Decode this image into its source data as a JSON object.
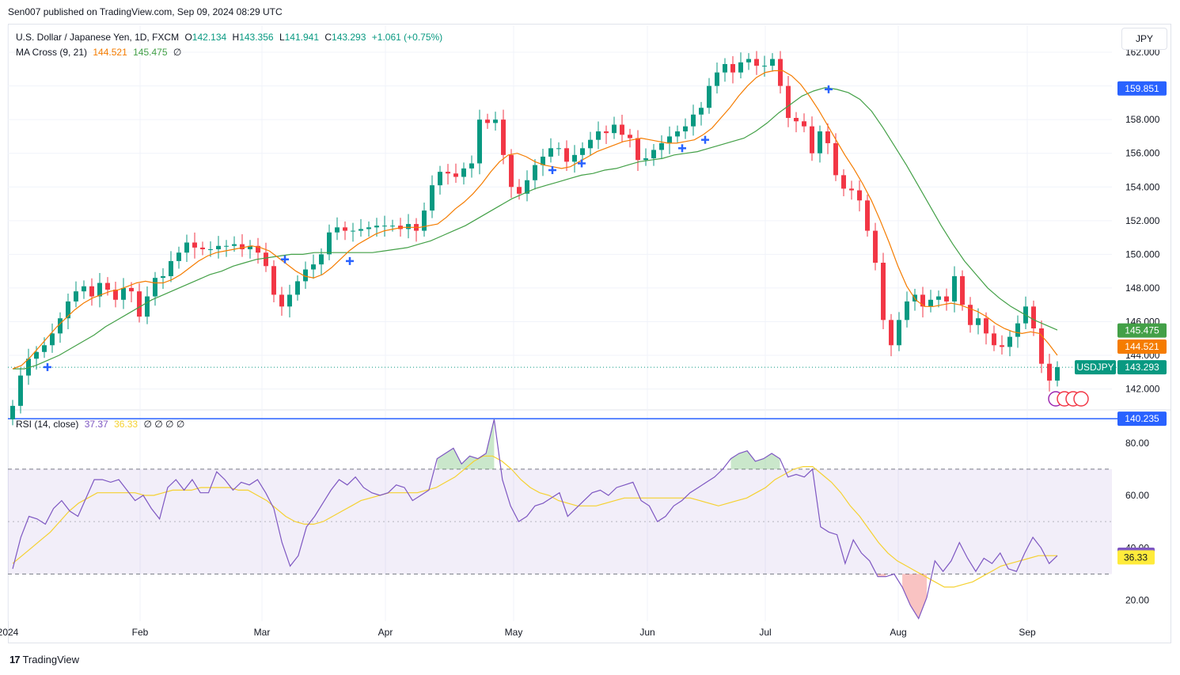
{
  "publisher": "Sen007 published on TradingView.com, Sep 09, 2024 08:29 UTC",
  "currency": "JPY",
  "footer": {
    "brand": "TradingView",
    "logo": "tradingview-logo-icon"
  },
  "colors": {
    "up": "#089981",
    "down": "#f23645",
    "ma_fast": "#f57c00",
    "ma_slow": "#43a047",
    "rsi": "#7e57c2",
    "rsi_ma": "#f5d130",
    "support": "#2962ff",
    "cross": "#2962ff"
  },
  "legend": {
    "symbol": "U.S. Dollar / Japanese Yen, 1D, FXCM",
    "o_label": "O",
    "o": "142.134",
    "h_label": "H",
    "h": "143.356",
    "l_label": "L",
    "l": "141.941",
    "c_label": "C",
    "c": "143.293",
    "change": "+1.061 (+0.75%)",
    "ma_title": "MA Cross (9, 21)",
    "ma_fast": "144.521",
    "ma_slow": "145.475",
    "ma_extra": "∅",
    "rsi_title": "RSI (14, close)",
    "rsi_value": "37.37",
    "rsi_ma": "36.33",
    "rsi_extra": "∅ ∅ ∅ ∅"
  },
  "chart_data": {
    "type": "candlestick",
    "x_axis": {
      "tick_labels": [
        "2024",
        "Feb",
        "Mar",
        "Apr",
        "May",
        "Jun",
        "Jul",
        "Aug",
        "Sep"
      ]
    },
    "y_axis": {
      "ticks": [
        142,
        144,
        146,
        148,
        150,
        152,
        154,
        156,
        158,
        160,
        162
      ],
      "tick_labels": [
        "142.000",
        "144.000",
        "146.000",
        "148.000",
        "150.000",
        "152.000",
        "154.000",
        "156.000",
        "158.000",
        "160.000",
        "162.000"
      ],
      "range": [
        140.9,
        163.6
      ]
    },
    "price_badges": [
      {
        "label": "",
        "value": 159.851,
        "text": "159.851",
        "color": "#2962ff"
      },
      {
        "label": "",
        "value": 145.475,
        "text": "145.475",
        "color": "#43a047"
      },
      {
        "label": "",
        "value": 144.521,
        "text": "144.521",
        "color": "#f57c00"
      },
      {
        "label": "USDJPY",
        "value": 143.293,
        "text": "143.293",
        "color": "#089981"
      },
      {
        "label": "",
        "value": 140.235,
        "text": "140.235",
        "color": "#2962ff"
      }
    ],
    "support_line": 140.235,
    "last_price": 143.293,
    "close_path": [
      141.0,
      142.8,
      143.8,
      144.2,
      144.6,
      145.3,
      146.2,
      147.2,
      147.8,
      148.1,
      147.5,
      148.3,
      147.9,
      147.3,
      148.0,
      147.8,
      146.3,
      147.5,
      148.6,
      148.7,
      149.6,
      150.1,
      150.7,
      150.4,
      150.3,
      150.3,
      150.5,
      150.5,
      150.6,
      150.3,
      150.5,
      150.1,
      149.3,
      147.6,
      146.9,
      147.6,
      148.4,
      149.1,
      149.4,
      150.0,
      151.3,
      151.6,
      151.4,
      151.4,
      151.5,
      151.6,
      151.7,
      151.7,
      151.7,
      151.5,
      151.8,
      151.4,
      152.6,
      154.1,
      154.9,
      154.8,
      154.6,
      155.1,
      155.4,
      158.0,
      157.8,
      158.0,
      155.9,
      154.0,
      153.6,
      154.4,
      155.3,
      155.8,
      156.3,
      156.3,
      155.5,
      155.9,
      156.3,
      156.8,
      157.3,
      157.2,
      157.7,
      157.1,
      156.9,
      155.6,
      155.7,
      156.2,
      156.6,
      157.0,
      157.3,
      157.6,
      158.3,
      158.7,
      160.0,
      160.8,
      161.3,
      160.8,
      161.4,
      161.6,
      161.2,
      161.2,
      161.6,
      160.0,
      158.1,
      157.9,
      157.6,
      156.0,
      157.3,
      156.6,
      154.7,
      153.9,
      153.8,
      153.2,
      151.4,
      149.5,
      146.1,
      144.6,
      146.1,
      147.2,
      147.6,
      146.9,
      147.3,
      147.5,
      147.2,
      148.7,
      147.0,
      145.8,
      146.2,
      145.3,
      144.6,
      144.5,
      145.1,
      145.9,
      146.9,
      145.6,
      143.5,
      142.5,
      143.3
    ],
    "ma_fast_path": [
      143.2,
      143.4,
      143.9,
      144.5,
      145.1,
      145.7,
      146.2,
      146.7,
      147.1,
      147.4,
      147.6,
      147.8,
      147.9,
      148.1,
      148.3,
      148.4,
      148.3,
      148.3,
      148.5,
      148.8,
      149.2,
      149.6,
      149.9,
      150.1,
      150.2,
      150.3,
      150.4,
      150.5,
      150.4,
      150.2,
      149.8,
      149.4,
      149.0,
      148.7,
      148.6,
      148.8,
      149.2,
      149.7,
      150.2,
      150.6,
      150.9,
      151.2,
      151.4,
      151.5,
      151.6,
      151.6,
      151.6,
      151.7,
      151.8,
      152.2,
      152.7,
      153.1,
      153.6,
      154.2,
      154.9,
      155.5,
      155.9,
      156.0,
      155.8,
      155.5,
      155.3,
      155.2,
      155.1,
      155.2,
      155.5,
      155.8,
      156.1,
      156.3,
      156.5,
      156.7,
      156.8,
      156.9,
      156.8,
      156.7,
      156.6,
      156.6,
      156.7,
      156.8,
      157.1,
      157.5,
      158.1,
      158.7,
      159.4,
      160.0,
      160.5,
      160.8,
      160.9,
      160.9,
      160.6,
      160.1,
      159.4,
      158.6,
      157.7,
      156.8,
      155.9,
      155.1,
      154.2,
      153.2,
      152.0,
      150.7,
      149.3,
      148.1,
      147.3,
      146.9,
      146.9,
      147.0,
      147.1,
      147.0,
      146.8,
      146.6,
      146.3,
      145.9,
      145.6,
      145.4,
      145.3,
      145.4,
      145.3,
      144.7,
      144.0
    ],
    "ma_slow_path": [
      143.2,
      143.2,
      143.4,
      143.7,
      144.0,
      144.4,
      144.8,
      145.2,
      145.7,
      146.1,
      146.5,
      146.9,
      147.3,
      147.6,
      147.9,
      148.2,
      148.5,
      148.8,
      149.0,
      149.3,
      149.5,
      149.7,
      149.8,
      149.9,
      150.0,
      150.0,
      150.1,
      150.1,
      150.1,
      150.1,
      150.1,
      150.1,
      150.2,
      150.3,
      150.4,
      150.6,
      150.8,
      151.1,
      151.4,
      151.7,
      152.1,
      152.5,
      152.9,
      153.3,
      153.6,
      153.9,
      154.1,
      154.3,
      154.5,
      154.7,
      154.8,
      155.0,
      155.1,
      155.3,
      155.5,
      155.6,
      155.7,
      155.9,
      156.0,
      156.1,
      156.3,
      156.5,
      156.7,
      156.9,
      157.3,
      157.8,
      158.4,
      158.9,
      159.4,
      159.7,
      159.9,
      159.8,
      159.6,
      159.2,
      158.5,
      157.5,
      156.4,
      155.3,
      154.1,
      152.9,
      151.7,
      150.6,
      149.6,
      148.8,
      148.0,
      147.4,
      146.9,
      146.5,
      146.1,
      145.8,
      145.5
    ]
  },
  "rsi_data": {
    "y_axis": {
      "tick_labels": [
        "20.00",
        "40.00",
        "60.00",
        "80.00"
      ],
      "ticks": [
        20,
        40,
        60,
        80
      ],
      "range": [
        12,
        92
      ]
    },
    "upper_band": 70,
    "middle_band": 50,
    "lower_band": 30,
    "badges": [
      {
        "value": 37.37,
        "text": "37.37",
        "color": "#7e57c2",
        "text_color": "#ffffff"
      },
      {
        "value": 36.33,
        "text": "36.33",
        "color": "#ffeb3b",
        "text_color": "#131722"
      }
    ],
    "rsi_path": [
      32,
      44,
      52,
      51,
      49,
      55,
      58,
      54,
      52,
      59,
      66,
      66,
      65,
      66,
      62,
      58,
      60,
      55,
      51,
      63,
      66,
      62,
      66,
      61,
      61,
      69,
      66,
      62,
      65,
      64,
      66,
      61,
      55,
      42,
      33,
      37,
      48,
      52,
      57,
      62,
      66,
      64,
      67,
      63,
      61,
      60,
      61,
      64,
      63,
      58,
      60,
      62,
      74,
      76,
      78,
      72,
      75,
      74,
      76,
      89,
      66,
      56,
      50,
      52,
      56,
      57,
      59,
      61,
      52,
      55,
      58,
      61,
      62,
      60,
      63,
      64,
      65,
      58,
      56,
      50,
      52,
      56,
      58,
      61,
      63,
      65,
      67,
      70,
      74,
      76,
      77,
      73,
      74,
      76,
      74,
      67,
      68,
      67,
      70,
      48,
      46,
      45,
      34,
      43,
      38,
      35,
      29,
      29,
      30,
      25,
      18,
      13,
      21,
      35,
      31,
      35,
      42,
      36,
      31,
      36,
      34,
      38,
      32,
      31,
      38,
      44,
      40,
      34,
      37
    ],
    "rsi_ma_path": [
      34,
      37,
      40,
      43,
      46,
      50,
      54,
      57,
      59,
      61,
      61,
      61,
      61,
      61,
      60,
      60,
      61,
      62,
      62,
      62,
      63,
      63,
      63,
      63,
      62,
      62,
      60,
      58,
      55,
      52,
      50,
      49,
      49,
      50,
      52,
      54,
      56,
      58,
      59,
      60,
      61,
      61,
      61,
      61,
      62,
      63,
      65,
      67,
      70,
      73,
      75,
      75,
      73,
      70,
      66,
      63,
      61,
      60,
      58,
      57,
      56,
      56,
      56,
      57,
      58,
      59,
      59,
      59,
      59,
      59,
      59,
      59,
      59,
      58,
      57,
      56,
      57,
      58,
      59,
      61,
      63,
      66,
      68,
      70,
      71,
      71,
      68,
      65,
      61,
      56,
      52,
      47,
      42,
      38,
      35,
      33,
      31,
      29,
      27,
      25,
      25,
      26,
      27,
      29,
      31,
      33,
      34,
      35,
      36,
      37,
      37,
      37
    ]
  }
}
